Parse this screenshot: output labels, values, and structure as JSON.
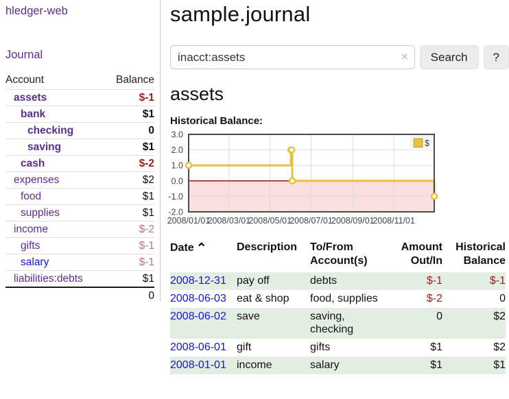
{
  "app": {
    "brand": "hledger-web",
    "nav_journal": "Journal"
  },
  "colors": {
    "link_purple": "#5c2d91",
    "link_blue": "#1414dd",
    "neg_dark_red": "#9d1c1c",
    "neg_light_red": "#c0777c",
    "row_green": "#e3eee3",
    "chart_gold": "#e7c23e",
    "chart_pink": "#fbdede",
    "chart_zero_red": "#8f1a1a"
  },
  "sidebar": {
    "header": {
      "account": "Account",
      "balance": "Balance"
    },
    "accounts": [
      {
        "name": "assets",
        "depth": 1,
        "bold": true,
        "balance": "$-1",
        "balance_tone": "darkred",
        "link_tone": "purple"
      },
      {
        "name": "bank",
        "depth": 2,
        "bold": true,
        "balance": "$1",
        "balance_tone": "black",
        "link_tone": "purple"
      },
      {
        "name": "checking",
        "depth": 3,
        "bold": true,
        "balance": "0",
        "balance_tone": "black",
        "link_tone": "purple"
      },
      {
        "name": "saving",
        "depth": 3,
        "bold": true,
        "balance": "$1",
        "balance_tone": "black",
        "link_tone": "purple"
      },
      {
        "name": "cash",
        "depth": 2,
        "bold": true,
        "balance": "$-2",
        "balance_tone": "darkred",
        "link_tone": "purple"
      },
      {
        "name": "expenses",
        "depth": 1,
        "bold": false,
        "balance": "$2",
        "balance_tone": "black",
        "link_tone": "purple"
      },
      {
        "name": "food",
        "depth": 2,
        "bold": false,
        "balance": "$1",
        "balance_tone": "black",
        "link_tone": "purple"
      },
      {
        "name": "supplies",
        "depth": 2,
        "bold": false,
        "balance": "$1",
        "balance_tone": "black",
        "link_tone": "purple"
      },
      {
        "name": "income",
        "depth": 1,
        "bold": false,
        "balance": "$-2",
        "balance_tone": "lightred",
        "link_tone": "purple"
      },
      {
        "name": "gifts",
        "depth": 2,
        "bold": false,
        "balance": "$-1",
        "balance_tone": "lightred",
        "link_tone": "purple"
      },
      {
        "name": "salary",
        "depth": 2,
        "bold": false,
        "balance": "$-1",
        "balance_tone": "lightred",
        "link_tone": "blue"
      },
      {
        "name": "liabilities:debts",
        "depth": 1,
        "bold": false,
        "balance": "$1",
        "balance_tone": "black",
        "link_tone": "purple"
      }
    ],
    "total": "0"
  },
  "header": {
    "title": "sample.journal"
  },
  "search": {
    "value": "inacct:assets",
    "clear_icon": "×",
    "search_button": "Search",
    "help_button": "?"
  },
  "register": {
    "heading": "assets",
    "chart_label": "Historical Balance:",
    "table": {
      "headers": [
        {
          "line1": "Date",
          "line2": "",
          "align": "left",
          "sort": "asc"
        },
        {
          "line1": "Description",
          "line2": "",
          "align": "left"
        },
        {
          "line1": "To/From",
          "line2": "Account(s)",
          "align": "left"
        },
        {
          "line1": "Amount",
          "line2": "Out/In",
          "align": "right"
        },
        {
          "line1": "Historical",
          "line2": "Balance",
          "align": "right"
        }
      ],
      "sort_indicator": "⌃",
      "rows": [
        {
          "date": "2008-12-31",
          "description": "pay off",
          "accounts": "debts",
          "amount": "$-1",
          "amount_neg": true,
          "balance": "$-1",
          "balance_neg": true,
          "shade": true
        },
        {
          "date": "2008-06-03",
          "description": "eat & shop",
          "accounts": "food, supplies",
          "amount": "$-2",
          "amount_neg": true,
          "balance": "0",
          "balance_neg": false,
          "shade": false
        },
        {
          "date": "2008-06-02",
          "description": "save",
          "accounts": "saving, checking",
          "amount": "0",
          "amount_neg": false,
          "balance": "$2",
          "balance_neg": false,
          "shade": true
        },
        {
          "date": "2008-06-01",
          "description": "gift",
          "accounts": "gifts",
          "amount": "$1",
          "amount_neg": false,
          "balance": "$2",
          "balance_neg": false,
          "shade": false
        },
        {
          "date": "2008-01-01",
          "description": "income",
          "accounts": "salary",
          "amount": "$1",
          "amount_neg": false,
          "balance": "$1",
          "balance_neg": false,
          "shade": true
        }
      ]
    }
  },
  "chart_data": {
    "type": "line",
    "title": "Historical Balance:",
    "steps": true,
    "legend": {
      "label": "$",
      "position": "top-right",
      "swatch_color": "#e7c23e"
    },
    "x_start": "2008/01/01",
    "x_end": "2008/12/31",
    "x_ticks": [
      "2008/01/01",
      "2008/03/01",
      "2008/05/01",
      "2008/07/01",
      "2008/09/01",
      "2008/11/01"
    ],
    "y_ticks": [
      3.0,
      2.0,
      1.0,
      0.0,
      -1.0,
      -2.0
    ],
    "ylim": [
      -2,
      3
    ],
    "grid": true,
    "series": [
      {
        "name": "$",
        "color": "#e7c23e",
        "points": [
          {
            "date": "2008-01-01",
            "value": 1
          },
          {
            "date": "2008-06-01",
            "value": 2
          },
          {
            "date": "2008-06-02",
            "value": 2
          },
          {
            "date": "2008-06-03",
            "value": 0
          },
          {
            "date": "2008-12-31",
            "value": -1
          }
        ]
      }
    ],
    "negative_region_fill": "#fbdede",
    "zero_line_color": "#8f1a1a"
  }
}
